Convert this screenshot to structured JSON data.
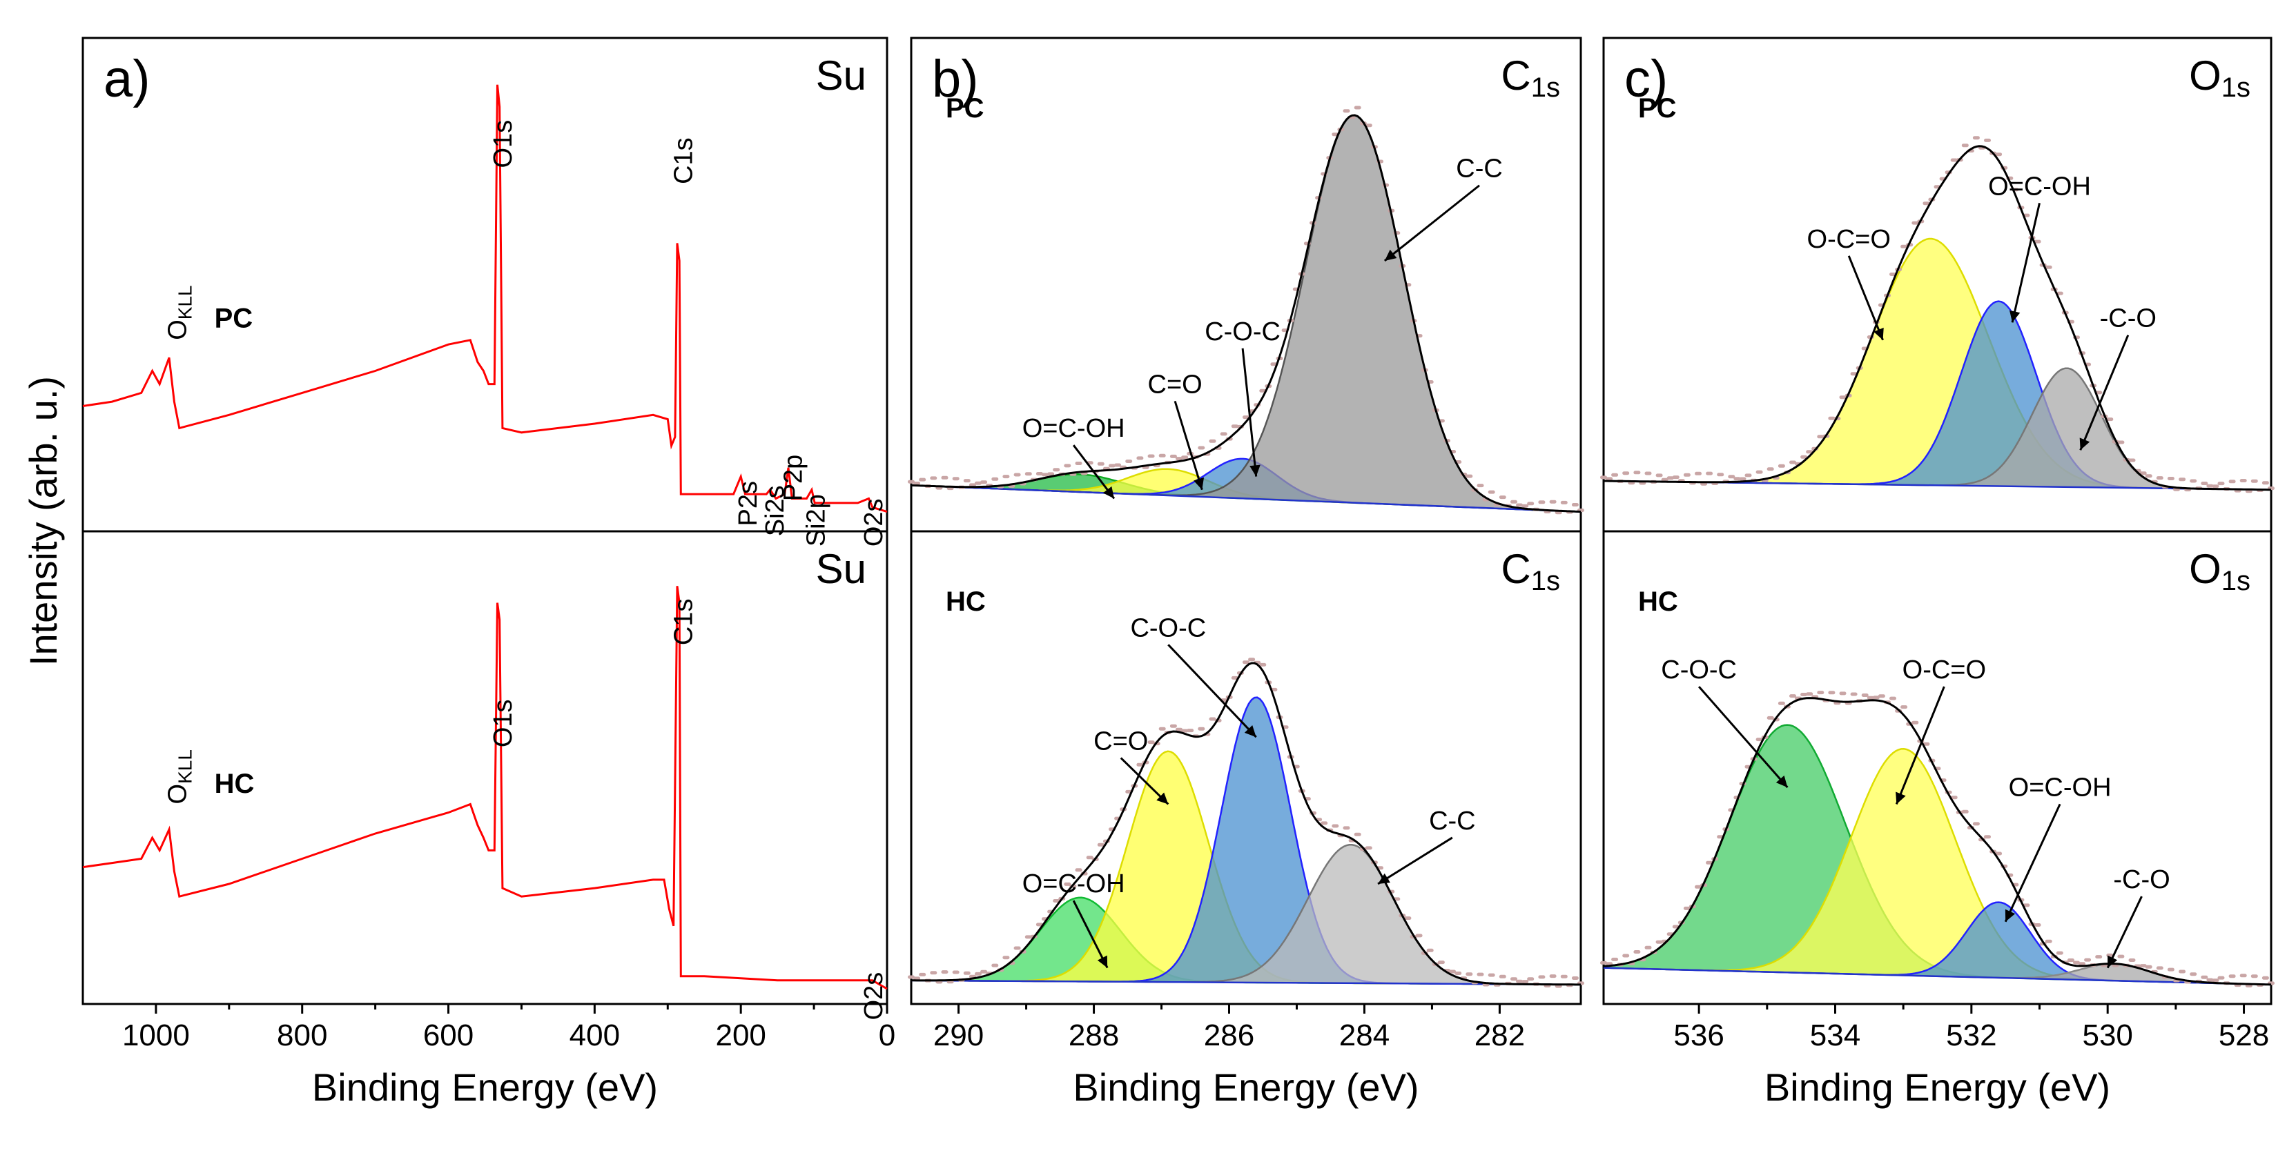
{
  "chart_data": [
    {
      "id": "a",
      "type": "line",
      "panel_label": "a)",
      "xlabel": "Binding Energy (eV)",
      "ylabel": "Intensity (arb. u.)",
      "xlim": [
        1100,
        0
      ],
      "xticks": [
        1000,
        800,
        600,
        400,
        200,
        0
      ],
      "subplots": [
        {
          "sample": "PC",
          "corner_label": "Su",
          "line_color": "#ff0000",
          "ylim": [
            0,
            100
          ],
          "points": [
            [
              1100,
              25
            ],
            [
              1060,
              26
            ],
            [
              1020,
              28
            ],
            [
              1005,
              33
            ],
            [
              995,
              30
            ],
            [
              982,
              36
            ],
            [
              975,
              26
            ],
            [
              968,
              20
            ],
            [
              900,
              23
            ],
            [
              800,
              28
            ],
            [
              700,
              33
            ],
            [
              600,
              39
            ],
            [
              570,
              40
            ],
            [
              560,
              35
            ],
            [
              552,
              33
            ],
            [
              545,
              30
            ],
            [
              537,
              30
            ],
            [
              533,
              98
            ],
            [
              530,
              93
            ],
            [
              526,
              20
            ],
            [
              500,
              19
            ],
            [
              400,
              21
            ],
            [
              320,
              23
            ],
            [
              300,
              22
            ],
            [
              295,
              16
            ],
            [
              290,
              18
            ],
            [
              287,
              62
            ],
            [
              284,
              58
            ],
            [
              282,
              5
            ],
            [
              250,
              5
            ],
            [
              210,
              5
            ],
            [
              200,
              9
            ],
            [
              194,
              5
            ],
            [
              165,
              5
            ],
            [
              160,
              6
            ],
            [
              152,
              4
            ],
            [
              140,
              5
            ],
            [
              135,
              11
            ],
            [
              130,
              4
            ],
            [
              110,
              4
            ],
            [
              103,
              6
            ],
            [
              99,
              3
            ],
            [
              40,
              3
            ],
            [
              25,
              4
            ],
            [
              20,
              2
            ],
            [
              0,
              1
            ]
          ],
          "peak_labels": [
            {
              "text": "O1s",
              "x": 525,
              "y": 90,
              "vertical": true
            },
            {
              "text": "C1s",
              "x": 278,
              "y": 86,
              "vertical": true
            },
            {
              "text": "P2s",
              "x": 190,
              "y": 8,
              "vertical": true
            },
            {
              "text": "Si2s",
              "x": 153,
              "y": 7,
              "vertical": true
            },
            {
              "text": "P2p",
              "x": 128,
              "y": 14,
              "vertical": true
            },
            {
              "text": "Si2p",
              "x": 97,
              "y": 5,
              "vertical": true
            },
            {
              "text": "O2s",
              "x": 18,
              "y": 4,
              "vertical": true
            }
          ],
          "annotations": [
            {
              "text": "O",
              "sub": "KLL",
              "x": 970,
              "y": 40
            }
          ]
        },
        {
          "sample": "HC",
          "corner_label": "Su",
          "line_color": "#ff0000",
          "ylim": [
            0,
            100
          ],
          "points": [
            [
              1100,
              29
            ],
            [
              1060,
              30
            ],
            [
              1020,
              31
            ],
            [
              1005,
              36
            ],
            [
              995,
              33
            ],
            [
              982,
              38
            ],
            [
              975,
              28
            ],
            [
              968,
              22
            ],
            [
              900,
              25
            ],
            [
              800,
              31
            ],
            [
              700,
              37
            ],
            [
              600,
              42
            ],
            [
              570,
              44
            ],
            [
              560,
              39
            ],
            [
              552,
              36
            ],
            [
              545,
              33
            ],
            [
              537,
              33
            ],
            [
              533,
              92
            ],
            [
              530,
              88
            ],
            [
              526,
              24
            ],
            [
              500,
              22
            ],
            [
              400,
              24
            ],
            [
              320,
              26
            ],
            [
              305,
              26
            ],
            [
              298,
              19
            ],
            [
              292,
              15
            ],
            [
              287,
              96
            ],
            [
              284,
              92
            ],
            [
              282,
              3
            ],
            [
              250,
              3
            ],
            [
              150,
              2
            ],
            [
              50,
              2
            ],
            [
              20,
              2
            ],
            [
              0,
              0
            ]
          ],
          "peak_labels": [
            {
              "text": "O1s",
              "x": 525,
              "y": 69,
              "vertical": true
            },
            {
              "text": "C1s",
              "x": 278,
              "y": 93,
              "vertical": true
            },
            {
              "text": "O2s",
              "x": 18,
              "y": 4,
              "vertical": true
            }
          ],
          "annotations": [
            {
              "text": "O",
              "sub": "KLL",
              "x": 970,
              "y": 44
            }
          ]
        }
      ]
    },
    {
      "id": "b",
      "type": "area",
      "panel_label": "b)",
      "xlabel": "Binding Energy (eV)",
      "xlim": [
        290.7,
        280.8
      ],
      "xticks": [
        290,
        288,
        286,
        284,
        282
      ],
      "subplots": [
        {
          "sample": "PC",
          "corner_label": "C",
          "corner_sub": "1s",
          "ylim": [
            0,
            100
          ],
          "baseline": {
            "start": 7,
            "end": 1
          },
          "components": [
            {
              "name": "O=C-OH",
              "center": 288.2,
              "fwhm": 1.5,
              "height": 4,
              "fill": "#22bb44",
              "edge": "#11aa22"
            },
            {
              "name": "C=O",
              "center": 286.9,
              "fwhm": 1.4,
              "height": 6,
              "fill": "#ffff44",
              "edge": "#dddd00"
            },
            {
              "name": "C-O-C",
              "center": 285.8,
              "fwhm": 1.2,
              "height": 9,
              "fill": "#4a90d0",
              "edge": "#2222ff"
            },
            {
              "name": "C-C",
              "center": 284.15,
              "fwhm": 1.7,
              "height": 88,
              "fill": "#9a9a9a",
              "edge": "#555555"
            }
          ],
          "labels": [
            {
              "text": "O=C-OH",
              "x": 288.3,
              "y": 18,
              "ax": 287.7,
              "ay": 4
            },
            {
              "text": "C=O",
              "x": 286.8,
              "y": 28,
              "ax": 286.4,
              "ay": 6
            },
            {
              "text": "C-O-C",
              "x": 285.8,
              "y": 40,
              "ax": 285.6,
              "ay": 9
            },
            {
              "text": "C-C",
              "x": 282.3,
              "y": 77,
              "ax": 283.7,
              "ay": 58
            }
          ]
        },
        {
          "sample": "HC",
          "corner_label": "C",
          "corner_sub": "1s",
          "ylim": [
            0,
            100
          ],
          "baseline": {
            "start": 2,
            "end": 1
          },
          "components": [
            {
              "name": "O=C-OH",
              "center": 288.2,
              "fwhm": 1.4,
              "height": 20,
              "fill": "#44dd66",
              "edge": "#11bb33"
            },
            {
              "name": "C=O",
              "center": 286.9,
              "fwhm": 1.4,
              "height": 55,
              "fill": "#ffff44",
              "edge": "#dddd00"
            },
            {
              "name": "C-O-C",
              "center": 285.6,
              "fwhm": 1.2,
              "height": 68,
              "fill": "#4a90d0",
              "edge": "#2222ff"
            },
            {
              "name": "C-C",
              "center": 284.2,
              "fwhm": 1.5,
              "height": 33,
              "fill": "#bbbbbb",
              "edge": "#777777"
            }
          ],
          "labels": [
            {
              "text": "O=C-OH",
              "x": 288.3,
              "y": 23,
              "ax": 287.8,
              "ay": 5
            },
            {
              "text": "C=O",
              "x": 287.6,
              "y": 57,
              "ax": 286.9,
              "ay": 44
            },
            {
              "text": "C-O-C",
              "x": 286.9,
              "y": 84,
              "ax": 285.6,
              "ay": 60
            },
            {
              "text": "C-C",
              "x": 282.7,
              "y": 38,
              "ax": 283.8,
              "ay": 25
            }
          ]
        }
      ]
    },
    {
      "id": "c",
      "type": "area",
      "panel_label": "c)",
      "xlabel": "Binding Energy (eV)",
      "xlim": [
        537.4,
        527.6
      ],
      "xticks": [
        536,
        534,
        532,
        530,
        528
      ],
      "subplots": [
        {
          "sample": "PC",
          "corner_label": "O",
          "corner_sub": "1s",
          "ylim": [
            0,
            100
          ],
          "baseline": {
            "start": 8,
            "end": 6
          },
          "components": [
            {
              "name": "O-C=O",
              "center": 532.6,
              "fwhm": 2.0,
              "height": 56,
              "fill": "#ffff55",
              "edge": "#dddd00"
            },
            {
              "name": "O=C-OH",
              "center": 531.6,
              "fwhm": 1.3,
              "height": 42,
              "fill": "#4a90d0",
              "edge": "#2222ff"
            },
            {
              "name": "-C-O",
              "center": 530.6,
              "fwhm": 1.2,
              "height": 27,
              "fill": "#aaaaaa",
              "edge": "#777777"
            }
          ],
          "labels": [
            {
              "text": "O-C=O",
              "x": 533.8,
              "y": 61,
              "ax": 533.3,
              "ay": 40
            },
            {
              "text": "O=C-OH",
              "x": 531.0,
              "y": 73,
              "ax": 531.4,
              "ay": 44
            },
            {
              "text": "-C-O",
              "x": 529.7,
              "y": 43,
              "ax": 530.4,
              "ay": 15
            }
          ]
        },
        {
          "sample": "HC",
          "corner_label": "O",
          "corner_sub": "1s",
          "ylim": [
            0,
            100
          ],
          "baseline": {
            "start": 5,
            "end": 1
          },
          "components": [
            {
              "name": "C-O-C",
              "center": 534.7,
              "fwhm": 2.0,
              "height": 59,
              "fill": "#44cc66",
              "edge": "#11aa33"
            },
            {
              "name": "O-C=O",
              "center": 533.0,
              "fwhm": 1.8,
              "height": 54,
              "fill": "#ffff55",
              "edge": "#dddd00"
            },
            {
              "name": "O=C-OH",
              "center": 531.6,
              "fwhm": 1.1,
              "height": 18,
              "fill": "#4a90d0",
              "edge": "#2222ff"
            },
            {
              "name": "-C-O",
              "center": 529.9,
              "fwhm": 1.2,
              "height": 4,
              "fill": "#aaaaaa",
              "edge": "#888888"
            }
          ],
          "labels": [
            {
              "text": "C-O-C",
              "x": 536.0,
              "y": 74,
              "ax": 534.7,
              "ay": 48
            },
            {
              "text": "O-C=O",
              "x": 532.4,
              "y": 74,
              "ax": 533.1,
              "ay": 44
            },
            {
              "text": "O=C-OH",
              "x": 530.7,
              "y": 46,
              "ax": 531.5,
              "ay": 16
            },
            {
              "text": "-C-O",
              "x": 529.5,
              "y": 24,
              "ax": 530.0,
              "ay": 5
            }
          ]
        }
      ]
    }
  ]
}
